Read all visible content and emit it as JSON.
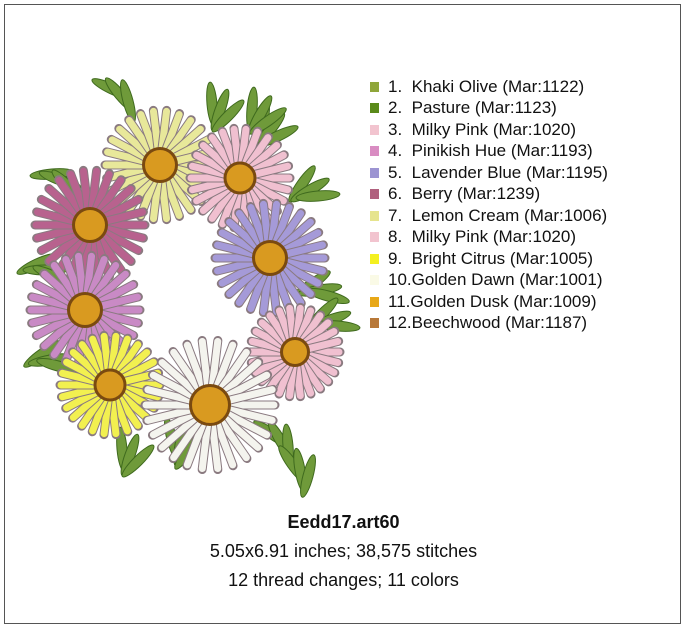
{
  "card": {
    "threads": [
      {
        "label": "1.  Khaki Olive (Mar:1122)",
        "color": "#8fa63a"
      },
      {
        "label": "2.  Pasture (Mar:1123)",
        "color": "#5a8a1a"
      },
      {
        "label": "3.  Milky Pink (Mar:1020)",
        "color": "#f2c4cf"
      },
      {
        "label": "4.  Pinikish Hue (Mar:1193)",
        "color": "#d98cc2"
      },
      {
        "label": "5.  Lavender Blue (Mar:1195)",
        "color": "#9c94d2"
      },
      {
        "label": "6.  Berry (Mar:1239)",
        "color": "#b0607e"
      },
      {
        "label": "7.  Lemon Cream (Mar:1006)",
        "color": "#e6e48e"
      },
      {
        "label": "8.  Milky Pink (Mar:1020)",
        "color": "#f2c4cf"
      },
      {
        "label": "9.  Bright Citrus (Mar:1005)",
        "color": "#f4f020"
      },
      {
        "label": "10.Golden Dawn (Mar:1001)",
        "color": "#fafae6"
      },
      {
        "label": "11.Golden Dusk (Mar:1009)",
        "color": "#e8a818"
      },
      {
        "label": "12.Beechwood (Mar:1187)",
        "color": "#b87838"
      }
    ],
    "title": "Eedd17.art60",
    "details": [
      "5.05x6.91 inches; 38,575 stitches",
      "12 thread changes; 11 colors"
    ]
  }
}
